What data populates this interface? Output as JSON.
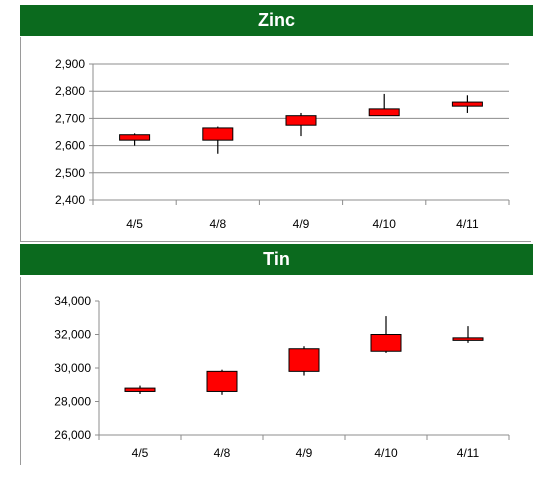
{
  "chart_data": [
    {
      "type": "candlestick",
      "title": "Zinc",
      "categories": [
        "4/5",
        "4/8",
        "4/9",
        "4/10",
        "4/11"
      ],
      "ylim": [
        2400,
        2900
      ],
      "yticks": [
        "2,400",
        "2,500",
        "2,600",
        "2,700",
        "2,800",
        "2,900"
      ],
      "grid": true,
      "candles": [
        {
          "open": 2620,
          "high": 2645,
          "low": 2600,
          "close": 2640
        },
        {
          "open": 2620,
          "high": 2670,
          "low": 2570,
          "close": 2665
        },
        {
          "open": 2675,
          "high": 2720,
          "low": 2635,
          "close": 2710
        },
        {
          "open": 2710,
          "high": 2790,
          "low": 2710,
          "close": 2735
        },
        {
          "open": 2745,
          "high": 2785,
          "low": 2720,
          "close": 2760
        }
      ]
    },
    {
      "type": "candlestick",
      "title": "Tin",
      "categories": [
        "4/5",
        "4/8",
        "4/9",
        "4/10",
        "4/11"
      ],
      "ylim": [
        26000,
        34000
      ],
      "yticks": [
        "26,000",
        "28,000",
        "30,000",
        "32,000",
        "34,000"
      ],
      "grid": false,
      "candles": [
        {
          "open": 28600,
          "high": 28950,
          "low": 28450,
          "close": 28800
        },
        {
          "open": 28600,
          "high": 29900,
          "low": 28400,
          "close": 29800
        },
        {
          "open": 29800,
          "high": 31300,
          "low": 29550,
          "close": 31150
        },
        {
          "open": 31000,
          "high": 33100,
          "low": 30900,
          "close": 32000
        },
        {
          "open": 31650,
          "high": 32500,
          "low": 31500,
          "close": 31800
        }
      ]
    }
  ],
  "colors": {
    "title_bar": "#0b6a1e",
    "candle_fill": "#ff0000",
    "candle_stroke": "#000000",
    "gridline": "#8c8c8c"
  }
}
